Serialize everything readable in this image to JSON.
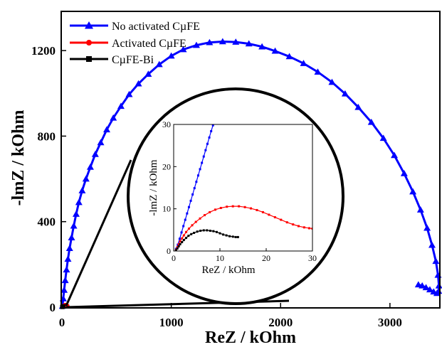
{
  "chart_data": {
    "type": "line",
    "xlabel": "ReZ / kOhm",
    "ylabel": "-lmZ / kOhm",
    "xlim": [
      0,
      3450
    ],
    "ylim": [
      0,
      1380
    ],
    "xticks": [
      0,
      1000,
      2000,
      3000
    ],
    "yticks": [
      0,
      400,
      800,
      1200
    ],
    "legend_position": "top-left",
    "series": [
      {
        "name": "No activated CµFE",
        "color": "#0000ff",
        "marker": "triangle",
        "x": [
          5,
          12,
          20,
          30,
          42,
          55,
          70,
          88,
          108,
          130,
          155,
          185,
          220,
          260,
          305,
          355,
          410,
          470,
          540,
          615,
          700,
          790,
          890,
          1000,
          1110,
          1230,
          1350,
          1470,
          1590,
          1710,
          1830,
          1950,
          2080,
          2210,
          2340,
          2470,
          2590,
          2710,
          2830,
          2940,
          3040,
          3130,
          3210,
          3280,
          3340,
          3385,
          3420,
          3440,
          3448,
          3445,
          3430,
          3400,
          3365,
          3330,
          3295,
          3260
        ],
        "y": [
          5,
          40,
          80,
          125,
          175,
          225,
          275,
          325,
          380,
          435,
          490,
          545,
          600,
          655,
          715,
          770,
          830,
          885,
          940,
          995,
          1045,
          1090,
          1135,
          1175,
          1205,
          1225,
          1238,
          1242,
          1240,
          1232,
          1218,
          1198,
          1172,
          1140,
          1100,
          1052,
          998,
          935,
          865,
          790,
          710,
          625,
          540,
          455,
          370,
          290,
          215,
          150,
          100,
          75,
          65,
          72,
          82,
          92,
          100,
          105
        ]
      },
      {
        "name": "Activated CµFE",
        "color": "#ff0000",
        "marker": "circle",
        "x": [
          5,
          12,
          20,
          28,
          36,
          44,
          50
        ],
        "y": [
          3,
          6,
          8,
          10,
          10,
          8,
          6
        ]
      },
      {
        "name": "CµFE-Bi",
        "color": "#000000",
        "marker": "square",
        "x": [
          3,
          6,
          9,
          12,
          14
        ],
        "y": [
          1,
          2,
          3,
          4,
          4
        ]
      }
    ],
    "inset": {
      "xlabel": "ReZ / kOhm",
      "ylabel": "-lmZ / kOhm",
      "xlim": [
        0,
        30
      ],
      "ylim": [
        0,
        30
      ],
      "xticks": [
        0,
        10,
        20,
        30
      ],
      "yticks": [
        0,
        10,
        20,
        30
      ],
      "series": [
        {
          "name": "No activated CµFE",
          "color": "#0000ff",
          "x": [
            0.5,
            0.9,
            1.3,
            1.7,
            2.1,
            2.5,
            2.9,
            3.3,
            3.7,
            4.1,
            4.5,
            4.9,
            5.3,
            5.7,
            6.1,
            6.5,
            6.9,
            7.3,
            7.7,
            8.1,
            8.5,
            8.9,
            9.3
          ],
          "y": [
            0.5,
            1.5,
            2.9,
            4.4,
            5.9,
            7.4,
            8.9,
            10.4,
            11.9,
            13.4,
            14.9,
            16.4,
            17.9,
            19.4,
            20.9,
            22.4,
            23.9,
            25.4,
            26.9,
            28.4,
            29.8,
            31.2,
            32.6
          ]
        },
        {
          "name": "Activated CµFE",
          "color": "#ff0000",
          "x": [
            0.5,
            0.8,
            1.1,
            1.4,
            1.8,
            2.2,
            2.7,
            3.3,
            4.0,
            4.8,
            5.7,
            6.7,
            7.8,
            9.0,
            10.2,
            11.5,
            12.8,
            14.1,
            15.4,
            16.7,
            18.0,
            19.3,
            20.6,
            21.9,
            23.2,
            24.5,
            25.8,
            27.0,
            28.2,
            29.3,
            30.0
          ],
          "y": [
            0.3,
            0.9,
            1.6,
            2.3,
            3.0,
            3.7,
            4.5,
            5.3,
            6.1,
            6.9,
            7.7,
            8.5,
            9.2,
            9.8,
            10.2,
            10.5,
            10.6,
            10.6,
            10.4,
            10.1,
            9.7,
            9.2,
            8.6,
            8.0,
            7.4,
            6.8,
            6.3,
            5.9,
            5.6,
            5.4,
            5.3
          ]
        },
        {
          "name": "CµFE-Bi",
          "color": "#000000",
          "x": [
            0.5,
            0.8,
            1.1,
            1.4,
            1.8,
            2.2,
            2.7,
            3.2,
            3.8,
            4.4,
            5.1,
            5.8,
            6.5,
            7.2,
            7.9,
            8.6,
            9.3,
            10.0,
            10.7,
            11.4,
            12.1,
            12.8,
            13.4,
            13.9
          ],
          "y": [
            0.2,
            0.6,
            1.1,
            1.6,
            2.1,
            2.6,
            3.1,
            3.6,
            4.0,
            4.3,
            4.6,
            4.8,
            4.9,
            4.9,
            4.8,
            4.7,
            4.5,
            4.2,
            3.9,
            3.7,
            3.5,
            3.4,
            3.3,
            3.3
          ]
        }
      ]
    }
  }
}
